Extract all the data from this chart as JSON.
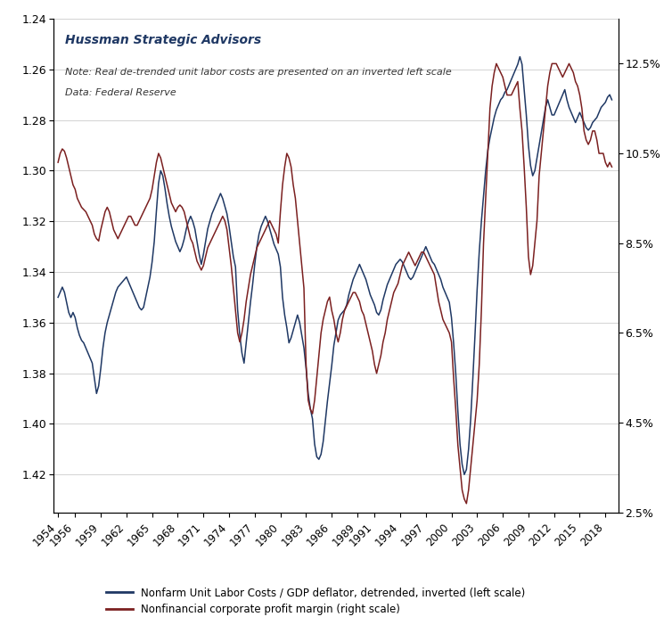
{
  "title": "Hussman Strategic Advisors",
  "note1": "Note: Real de-trended unit labor costs are presented on an inverted left scale",
  "note2": "Data: Federal Reserve",
  "legend1": "Nonfarm Unit Labor Costs / GDP deflator, detrended, inverted (left scale)",
  "legend2": "Nonfinancial corporate profit margin (right scale)",
  "color1": "#1F3864",
  "color2": "#7B2020",
  "left_yticks": [
    1.24,
    1.26,
    1.28,
    1.3,
    1.32,
    1.34,
    1.36,
    1.38,
    1.4,
    1.42
  ],
  "right_yticks": [
    2.5,
    4.5,
    6.5,
    8.5,
    10.5,
    12.5
  ],
  "ylim_left_top": 1.24,
  "ylim_left_bottom": 1.435,
  "ylim_right": [
    2.5,
    13.5
  ],
  "xticks": [
    1954,
    1956,
    1959,
    1962,
    1965,
    1968,
    1971,
    1974,
    1977,
    1980,
    1983,
    1986,
    1989,
    1991,
    1994,
    1997,
    2000,
    2003,
    2006,
    2009,
    2012,
    2015,
    2018
  ],
  "xlim": [
    1953.5,
    2019.5
  ],
  "ulc_years": [
    1954.0,
    1954.25,
    1954.5,
    1954.75,
    1955.0,
    1955.25,
    1955.5,
    1955.75,
    1956.0,
    1956.25,
    1956.5,
    1956.75,
    1957.0,
    1957.25,
    1957.5,
    1957.75,
    1958.0,
    1958.25,
    1958.5,
    1958.75,
    1959.0,
    1959.25,
    1959.5,
    1959.75,
    1960.0,
    1960.25,
    1960.5,
    1960.75,
    1961.0,
    1961.25,
    1961.5,
    1961.75,
    1962.0,
    1962.25,
    1962.5,
    1962.75,
    1963.0,
    1963.25,
    1963.5,
    1963.75,
    1964.0,
    1964.25,
    1964.5,
    1964.75,
    1965.0,
    1965.25,
    1965.5,
    1965.75,
    1966.0,
    1966.25,
    1966.5,
    1966.75,
    1967.0,
    1967.25,
    1967.5,
    1967.75,
    1968.0,
    1968.25,
    1968.5,
    1968.75,
    1969.0,
    1969.25,
    1969.5,
    1969.75,
    1970.0,
    1970.25,
    1970.5,
    1970.75,
    1971.0,
    1971.25,
    1971.5,
    1971.75,
    1972.0,
    1972.25,
    1972.5,
    1972.75,
    1973.0,
    1973.25,
    1973.5,
    1973.75,
    1974.0,
    1974.25,
    1974.5,
    1974.75,
    1975.0,
    1975.25,
    1975.5,
    1975.75,
    1976.0,
    1976.25,
    1976.5,
    1976.75,
    1977.0,
    1977.25,
    1977.5,
    1977.75,
    1978.0,
    1978.25,
    1978.5,
    1978.75,
    1979.0,
    1979.25,
    1979.5,
    1979.75,
    1980.0,
    1980.25,
    1980.5,
    1980.75,
    1981.0,
    1981.25,
    1981.5,
    1981.75,
    1982.0,
    1982.25,
    1982.5,
    1982.75,
    1983.0,
    1983.25,
    1983.5,
    1983.75,
    1984.0,
    1984.25,
    1984.5,
    1984.75,
    1985.0,
    1985.25,
    1985.5,
    1985.75,
    1986.0,
    1986.25,
    1986.5,
    1986.75,
    1987.0,
    1987.25,
    1987.5,
    1987.75,
    1988.0,
    1988.25,
    1988.5,
    1988.75,
    1989.0,
    1989.25,
    1989.5,
    1989.75,
    1990.0,
    1990.25,
    1990.5,
    1990.75,
    1991.0,
    1991.25,
    1991.5,
    1991.75,
    1992.0,
    1992.25,
    1992.5,
    1992.75,
    1993.0,
    1993.25,
    1993.5,
    1993.75,
    1994.0,
    1994.25,
    1994.5,
    1994.75,
    1995.0,
    1995.25,
    1995.5,
    1995.75,
    1996.0,
    1996.25,
    1996.5,
    1996.75,
    1997.0,
    1997.25,
    1997.5,
    1997.75,
    1998.0,
    1998.25,
    1998.5,
    1998.75,
    1999.0,
    1999.25,
    1999.5,
    1999.75,
    2000.0,
    2000.25,
    2000.5,
    2000.75,
    2001.0,
    2001.25,
    2001.5,
    2001.75,
    2002.0,
    2002.25,
    2002.5,
    2002.75,
    2003.0,
    2003.25,
    2003.5,
    2003.75,
    2004.0,
    2004.25,
    2004.5,
    2004.75,
    2005.0,
    2005.25,
    2005.5,
    2005.75,
    2006.0,
    2006.25,
    2006.5,
    2006.75,
    2007.0,
    2007.25,
    2007.5,
    2007.75,
    2008.0,
    2008.25,
    2008.5,
    2008.75,
    2009.0,
    2009.25,
    2009.5,
    2009.75,
    2010.0,
    2010.25,
    2010.5,
    2010.75,
    2011.0,
    2011.25,
    2011.5,
    2011.75,
    2012.0,
    2012.25,
    2012.5,
    2012.75,
    2013.0,
    2013.25,
    2013.5,
    2013.75,
    2014.0,
    2014.25,
    2014.5,
    2014.75,
    2015.0,
    2015.25,
    2015.5,
    2015.75,
    2016.0,
    2016.25,
    2016.5,
    2016.75,
    2017.0,
    2017.25,
    2017.5,
    2017.75,
    2018.0,
    2018.25,
    2018.5,
    2018.75
  ],
  "ulc_values": [
    1.35,
    1.348,
    1.346,
    1.348,
    1.352,
    1.356,
    1.358,
    1.356,
    1.358,
    1.362,
    1.365,
    1.367,
    1.368,
    1.37,
    1.372,
    1.374,
    1.376,
    1.382,
    1.388,
    1.385,
    1.378,
    1.37,
    1.364,
    1.36,
    1.357,
    1.354,
    1.351,
    1.348,
    1.346,
    1.345,
    1.344,
    1.343,
    1.342,
    1.344,
    1.346,
    1.348,
    1.35,
    1.352,
    1.354,
    1.355,
    1.354,
    1.35,
    1.346,
    1.342,
    1.336,
    1.328,
    1.316,
    1.305,
    1.3,
    1.302,
    1.307,
    1.313,
    1.318,
    1.322,
    1.325,
    1.328,
    1.33,
    1.332,
    1.33,
    1.327,
    1.323,
    1.32,
    1.318,
    1.32,
    1.323,
    1.328,
    1.333,
    1.337,
    1.333,
    1.328,
    1.323,
    1.32,
    1.317,
    1.315,
    1.313,
    1.311,
    1.309,
    1.311,
    1.314,
    1.317,
    1.322,
    1.328,
    1.334,
    1.338,
    1.355,
    1.365,
    1.372,
    1.376,
    1.368,
    1.36,
    1.352,
    1.345,
    1.337,
    1.33,
    1.325,
    1.322,
    1.32,
    1.318,
    1.32,
    1.323,
    1.326,
    1.329,
    1.331,
    1.333,
    1.338,
    1.35,
    1.357,
    1.362,
    1.368,
    1.366,
    1.363,
    1.36,
    1.357,
    1.36,
    1.365,
    1.37,
    1.378,
    1.388,
    1.394,
    1.398,
    1.408,
    1.413,
    1.414,
    1.412,
    1.407,
    1.399,
    1.391,
    1.384,
    1.377,
    1.369,
    1.364,
    1.359,
    1.357,
    1.356,
    1.355,
    1.353,
    1.349,
    1.346,
    1.343,
    1.341,
    1.339,
    1.337,
    1.339,
    1.341,
    1.343,
    1.346,
    1.349,
    1.351,
    1.353,
    1.356,
    1.357,
    1.355,
    1.351,
    1.348,
    1.345,
    1.343,
    1.341,
    1.339,
    1.337,
    1.336,
    1.335,
    1.336,
    1.338,
    1.34,
    1.342,
    1.343,
    1.342,
    1.34,
    1.338,
    1.336,
    1.334,
    1.332,
    1.33,
    1.332,
    1.334,
    1.336,
    1.337,
    1.339,
    1.341,
    1.343,
    1.346,
    1.348,
    1.35,
    1.352,
    1.358,
    1.368,
    1.38,
    1.395,
    1.408,
    1.416,
    1.42,
    1.418,
    1.41,
    1.398,
    1.382,
    1.365,
    1.347,
    1.332,
    1.32,
    1.31,
    1.3,
    1.292,
    1.287,
    1.283,
    1.279,
    1.276,
    1.274,
    1.272,
    1.271,
    1.269,
    1.268,
    1.266,
    1.264,
    1.262,
    1.26,
    1.258,
    1.255,
    1.258,
    1.268,
    1.278,
    1.29,
    1.298,
    1.302,
    1.3,
    1.295,
    1.29,
    1.285,
    1.28,
    1.275,
    1.272,
    1.275,
    1.278,
    1.278,
    1.276,
    1.274,
    1.272,
    1.27,
    1.268,
    1.272,
    1.275,
    1.277,
    1.279,
    1.281,
    1.279,
    1.277,
    1.279,
    1.281,
    1.283,
    1.284,
    1.283,
    1.281,
    1.28,
    1.279,
    1.277,
    1.275,
    1.274,
    1.273,
    1.271,
    1.27,
    1.272
  ],
  "pm_values": [
    10.3,
    10.5,
    10.6,
    10.55,
    10.4,
    10.2,
    10.0,
    9.8,
    9.7,
    9.5,
    9.4,
    9.3,
    9.25,
    9.2,
    9.1,
    9.0,
    8.9,
    8.7,
    8.6,
    8.55,
    8.8,
    9.0,
    9.2,
    9.3,
    9.2,
    9.0,
    8.8,
    8.7,
    8.6,
    8.7,
    8.8,
    8.9,
    9.0,
    9.1,
    9.1,
    9.0,
    8.9,
    8.9,
    9.0,
    9.1,
    9.2,
    9.3,
    9.4,
    9.5,
    9.7,
    10.0,
    10.3,
    10.5,
    10.4,
    10.2,
    10.0,
    9.8,
    9.6,
    9.4,
    9.3,
    9.2,
    9.3,
    9.35,
    9.3,
    9.2,
    9.0,
    8.8,
    8.6,
    8.5,
    8.3,
    8.1,
    8.0,
    7.9,
    8.0,
    8.2,
    8.4,
    8.5,
    8.6,
    8.7,
    8.8,
    8.9,
    9.0,
    9.1,
    9.0,
    8.8,
    8.4,
    8.0,
    7.5,
    7.0,
    6.5,
    6.3,
    6.5,
    6.8,
    7.2,
    7.5,
    7.8,
    8.0,
    8.2,
    8.4,
    8.5,
    8.6,
    8.7,
    8.8,
    8.9,
    9.0,
    8.9,
    8.8,
    8.7,
    8.5,
    9.2,
    9.8,
    10.2,
    10.5,
    10.4,
    10.2,
    9.8,
    9.5,
    9.0,
    8.5,
    8.0,
    7.5,
    5.8,
    5.0,
    4.8,
    4.7,
    5.0,
    5.5,
    6.0,
    6.5,
    6.8,
    7.0,
    7.2,
    7.3,
    7.0,
    6.8,
    6.5,
    6.3,
    6.5,
    6.8,
    7.0,
    7.1,
    7.2,
    7.3,
    7.4,
    7.4,
    7.3,
    7.2,
    7.0,
    6.9,
    6.7,
    6.5,
    6.3,
    6.1,
    5.8,
    5.6,
    5.8,
    6.0,
    6.3,
    6.5,
    6.8,
    7.0,
    7.2,
    7.4,
    7.5,
    7.6,
    7.8,
    8.0,
    8.1,
    8.2,
    8.3,
    8.2,
    8.1,
    8.0,
    8.1,
    8.2,
    8.3,
    8.3,
    8.2,
    8.1,
    8.0,
    7.9,
    7.8,
    7.5,
    7.2,
    7.0,
    6.8,
    6.7,
    6.6,
    6.5,
    6.3,
    5.5,
    4.8,
    4.0,
    3.5,
    3.0,
    2.8,
    2.7,
    3.0,
    3.5,
    4.0,
    4.5,
    5.0,
    5.8,
    7.0,
    8.5,
    9.5,
    10.5,
    11.5,
    12.0,
    12.3,
    12.5,
    12.4,
    12.3,
    12.2,
    12.0,
    11.8,
    11.8,
    11.8,
    11.9,
    12.0,
    12.1,
    11.5,
    11.0,
    10.2,
    9.3,
    8.2,
    7.8,
    8.0,
    8.5,
    9.0,
    10.0,
    10.5,
    11.0,
    11.5,
    12.0,
    12.3,
    12.5,
    12.5,
    12.5,
    12.4,
    12.3,
    12.2,
    12.3,
    12.4,
    12.5,
    12.4,
    12.3,
    12.1,
    12.0,
    11.8,
    11.5,
    11.0,
    10.8,
    10.7,
    10.8,
    11.0,
    11.0,
    10.8,
    10.5,
    10.5,
    10.5,
    10.3,
    10.2,
    10.3,
    10.2
  ]
}
